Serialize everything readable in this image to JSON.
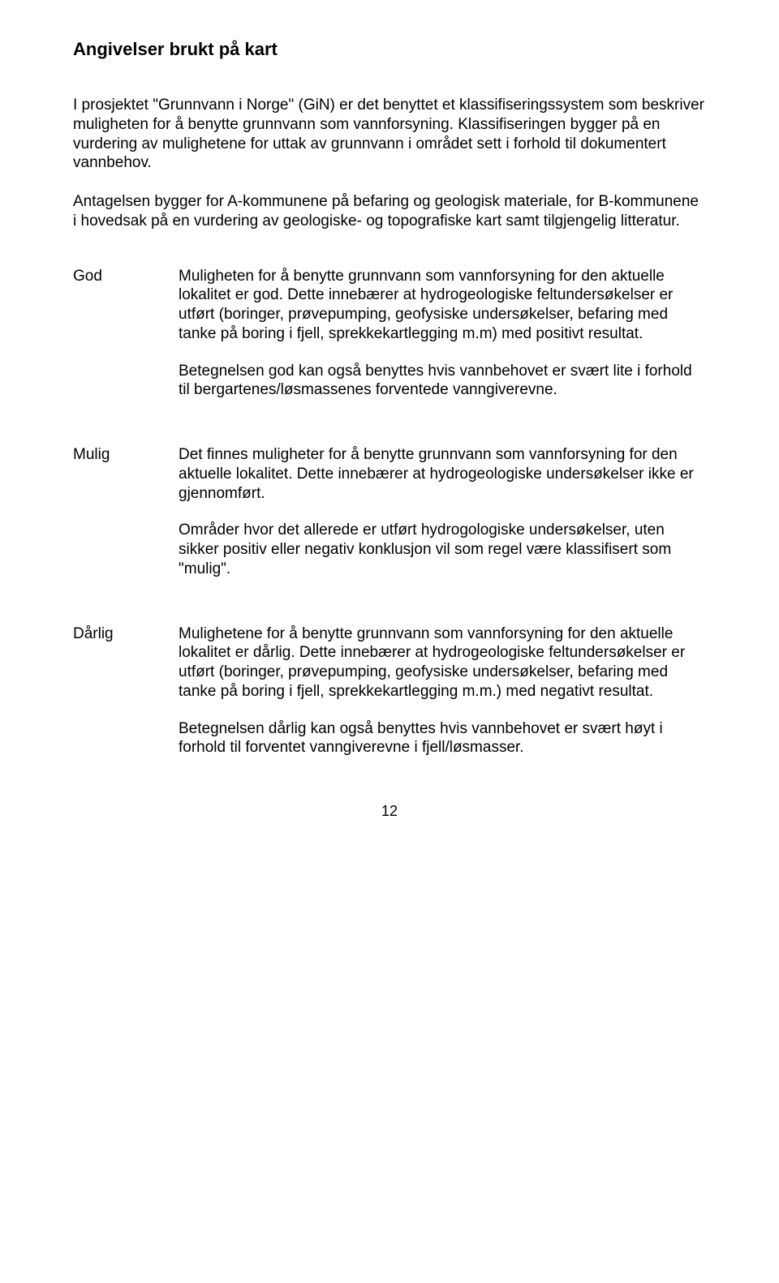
{
  "heading": "Angivelser brukt på kart",
  "intro": [
    "I prosjektet \"Grunnvann i Norge\" (GiN) er det benyttet et klassifiseringssystem som beskriver muligheten for å benytte grunnvann som vannforsyning. Klassifiseringen bygger på en vurdering av mulighetene for uttak av grunnvann i området sett i forhold til dokumentert vannbehov.",
    "Antagelsen bygger for A-kommunene på befaring og geologisk materiale, for B-kommunene i hovedsak på en vurdering av geologiske- og topografiske kart samt tilgjengelig litteratur."
  ],
  "definitions": [
    {
      "term": "God",
      "paragraphs": [
        "Muligheten for å benytte grunnvann som vannforsyning for den aktuelle lokalitet er god. Dette innebærer at hydrogeologiske feltundersøkelser er utført (boringer, prøvepumping, geofysiske undersøkelser, befaring med tanke på boring i fjell, sprekkekartlegging m.m) med positivt resultat.",
        "Betegnelsen god kan også benyttes hvis vannbehovet er svært lite i forhold til bergartenes/løsmassenes forventede vanngiverevne."
      ]
    },
    {
      "term": "Mulig",
      "paragraphs": [
        "Det finnes muligheter for å benytte grunnvann som vannforsyning for den aktuelle lokalitet. Dette innebærer at hydrogeologiske undersøkelser ikke er gjennomført.",
        "Områder hvor det allerede er utført hydrogologiske undersøkelser, uten sikker positiv eller negativ konklusjon vil som regel være klassifisert som \"mulig\"."
      ]
    },
    {
      "term": "Dårlig",
      "paragraphs": [
        "Mulighetene for å benytte grunnvann som vannforsyning for den aktuelle lokalitet er dårlig. Dette innebærer at hydrogeologiske feltundersøkelser er utført (boringer, prøvepumping, geofysiske undersøkelser, befaring med tanke på boring i fjell, sprekkekartlegging m.m.) med negativt resultat.",
        "Betegnelsen dårlig kan også benyttes hvis vannbehovet er svært høyt i forhold til forventet vanngiverevne i fjell/løsmasser."
      ]
    }
  ],
  "page_number": "12"
}
